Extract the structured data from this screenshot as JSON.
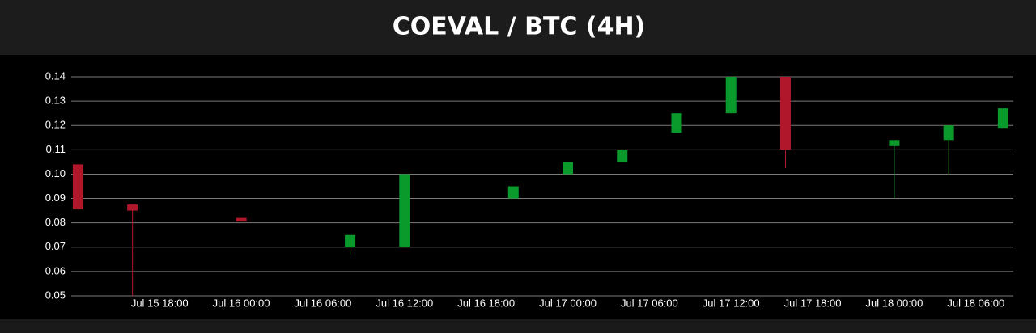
{
  "chart_data": {
    "type": "candlestick",
    "title": "COEVAL / BTC (4H)",
    "x": [
      "Jul 15 12:00",
      "Jul 15 16:00",
      "Jul 16 00:00",
      "Jul 16 08:00",
      "Jul 16 12:00",
      "Jul 16 20:00",
      "Jul 17 00:00",
      "Jul 17 04:00",
      "Jul 17 08:00",
      "Jul 17 12:00",
      "Jul 17 16:00",
      "Jul 18 00:00",
      "Jul 18 04:00",
      "Jul 18 08:00"
    ],
    "open": [
      0.104,
      0.0875,
      0.082,
      0.07,
      0.07,
      0.09,
      0.1,
      0.105,
      0.117,
      0.125,
      0.14,
      0.1115,
      0.114,
      0.119
    ],
    "high": [
      0.104,
      0.0875,
      0.082,
      0.075,
      0.1,
      0.095,
      0.105,
      0.11,
      0.125,
      0.14,
      0.14,
      0.114,
      0.12,
      0.127
    ],
    "low": [
      0.0855,
      0.05,
      0.0805,
      0.067,
      0.07,
      0.09,
      0.1,
      0.105,
      0.117,
      0.125,
      0.1025,
      0.09,
      0.1,
      0.119
    ],
    "close": [
      0.0855,
      0.085,
      0.0805,
      0.075,
      0.1,
      0.095,
      0.105,
      0.11,
      0.125,
      0.14,
      0.11,
      0.114,
      0.12,
      0.127
    ],
    "up_color": "#0a9a2c",
    "down_color": "#b0172a",
    "xlim": [
      "Jul 15 11:30",
      "Jul 18 08:45"
    ],
    "xticks": [
      "Jul 15 18:00",
      "Jul 16 00:00",
      "Jul 16 06:00",
      "Jul 16 12:00",
      "Jul 16 18:00",
      "Jul 17 00:00",
      "Jul 17 06:00",
      "Jul 17 12:00",
      "Jul 17 18:00",
      "Jul 18 00:00",
      "Jul 18 06:00"
    ],
    "ylim": [
      0.05,
      0.14
    ],
    "yticks": [
      0.05,
      0.06,
      0.07,
      0.08,
      0.09,
      {
        "value": 0.1,
        "label": "0.10"
      },
      0.11,
      0.12,
      0.13,
      0.14
    ],
    "grid": true
  }
}
